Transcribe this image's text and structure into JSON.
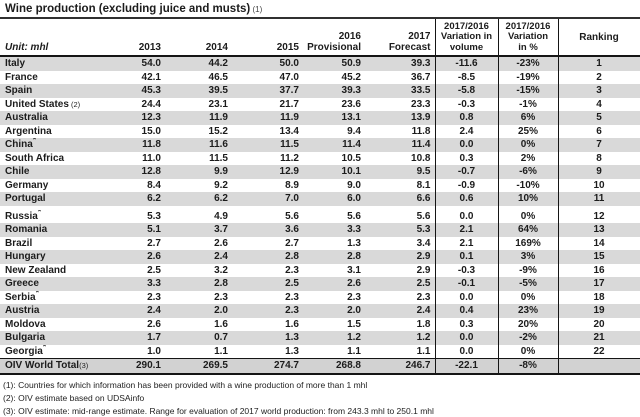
{
  "title": {
    "text": "Wine production (excluding juice and musts)",
    "note": "(1)"
  },
  "colors": {
    "stripe": "#d9d9d9",
    "total_bg": "#d2d2d2",
    "rule": "#151515",
    "text": "#1c1c1c"
  },
  "table": {
    "unit_label": "Unit: mhl",
    "col_headers": {
      "y2013": "2013",
      "y2014": "2014",
      "y2015": "2015",
      "y2016_l1": "2016",
      "y2016_l2": "Provisional",
      "y2017_l1": "2017",
      "y2017_l2": "Forecast",
      "varvol_l1": "2017/2016",
      "varvol_l2": "Variation in",
      "varvol_l3": "volume",
      "varpct_l1": "2017/2016",
      "varpct_l2": "Variation",
      "varpct_l3": "in %",
      "ranking": "Ranking"
    },
    "rows": [
      {
        "name": "Italy",
        "v13": "54.0",
        "v14": "44.2",
        "v15": "50.0",
        "v16": "50.9",
        "v17": "39.3",
        "dvol": "-11.6",
        "dpct": "-23%",
        "rank": "1"
      },
      {
        "name": "France",
        "v13": "42.1",
        "v14": "46.5",
        "v15": "47.0",
        "v16": "45.2",
        "v17": "36.7",
        "dvol": "-8.5",
        "dpct": "-19%",
        "rank": "2"
      },
      {
        "name": "Spain",
        "v13": "45.3",
        "v14": "39.5",
        "v15": "37.7",
        "v16": "39.3",
        "v17": "33.5",
        "dvol": "-5.8",
        "dpct": "-15%",
        "rank": "3"
      },
      {
        "name": "United States",
        "note": " (2)",
        "v13": "24.4",
        "v14": "23.1",
        "v15": "21.7",
        "v16": "23.6",
        "v17": "23.3",
        "dvol": "-0.3",
        "dpct": "-1%",
        "rank": "4"
      },
      {
        "name": "Australia",
        "v13": "12.3",
        "v14": "11.9",
        "v15": "11.9",
        "v16": "13.1",
        "v17": "13.9",
        "dvol": "0.8",
        "dpct": "6%",
        "rank": "5"
      },
      {
        "name": "Argentina",
        "v13": "15.0",
        "v14": "15.2",
        "v15": "13.4",
        "v16": "9.4",
        "v17": "11.8",
        "dvol": "2.4",
        "dpct": "25%",
        "rank": "6"
      },
      {
        "name": "China",
        "sup": "*",
        "v13": "11.8",
        "v14": "11.6",
        "v15": "11.5",
        "v16": "11.4",
        "v17": "11.4",
        "dvol": "0.0",
        "dpct": "0%",
        "rank": "7"
      },
      {
        "name": "South Africa",
        "v13": "11.0",
        "v14": "11.5",
        "v15": "11.2",
        "v16": "10.5",
        "v17": "10.8",
        "dvol": "0.3",
        "dpct": "2%",
        "rank": "8"
      },
      {
        "name": "Chile",
        "v13": "12.8",
        "v14": "9.9",
        "v15": "12.9",
        "v16": "10.1",
        "v17": "9.5",
        "dvol": "-0.7",
        "dpct": "-6%",
        "rank": "9"
      },
      {
        "name": "Germany",
        "v13": "8.4",
        "v14": "9.2",
        "v15": "8.9",
        "v16": "9.0",
        "v17": "8.1",
        "dvol": "-0.9",
        "dpct": "-10%",
        "rank": "10"
      },
      {
        "name": "Portugal",
        "v13": "6.2",
        "v14": "6.2",
        "v15": "7.0",
        "v16": "6.0",
        "v17": "6.6",
        "dvol": "0.6",
        "dpct": "10%",
        "rank": "11"
      },
      {
        "name": "Russia",
        "sup": "*",
        "gap_before": true,
        "v13": "5.3",
        "v14": "4.9",
        "v15": "5.6",
        "v16": "5.6",
        "v17": "5.6",
        "dvol": "0.0",
        "dpct": "0%",
        "rank": "12"
      },
      {
        "name": "Romania",
        "v13": "5.1",
        "v14": "3.7",
        "v15": "3.6",
        "v16": "3.3",
        "v17": "5.3",
        "dvol": "2.1",
        "dpct": "64%",
        "rank": "13"
      },
      {
        "name": "Brazil",
        "v13": "2.7",
        "v14": "2.6",
        "v15": "2.7",
        "v16": "1.3",
        "v17": "3.4",
        "dvol": "2.1",
        "dpct": "169%",
        "rank": "14"
      },
      {
        "name": "Hungary",
        "v13": "2.6",
        "v14": "2.4",
        "v15": "2.8",
        "v16": "2.8",
        "v17": "2.9",
        "dvol": "0.1",
        "dpct": "3%",
        "rank": "15"
      },
      {
        "name": "New Zealand",
        "v13": "2.5",
        "v14": "3.2",
        "v15": "2.3",
        "v16": "3.1",
        "v17": "2.9",
        "dvol": "-0.3",
        "dpct": "-9%",
        "rank": "16"
      },
      {
        "name": "Greece",
        "v13": "3.3",
        "v14": "2.8",
        "v15": "2.5",
        "v16": "2.6",
        "v17": "2.5",
        "dvol": "-0.1",
        "dpct": "-5%",
        "rank": "17"
      },
      {
        "name": "Serbia",
        "sup": "*",
        "v13": "2.3",
        "v14": "2.3",
        "v15": "2.3",
        "v16": "2.3",
        "v17": "2.3",
        "dvol": "0.0",
        "dpct": "0%",
        "rank": "18"
      },
      {
        "name": "Austria",
        "v13": "2.4",
        "v14": "2.0",
        "v15": "2.3",
        "v16": "2.0",
        "v17": "2.4",
        "dvol": "0.4",
        "dpct": "23%",
        "rank": "19"
      },
      {
        "name": "Moldova",
        "v13": "2.6",
        "v14": "1.6",
        "v15": "1.6",
        "v16": "1.5",
        "v17": "1.8",
        "dvol": "0.3",
        "dpct": "20%",
        "rank": "20"
      },
      {
        "name": "Bulgaria",
        "v13": "1.7",
        "v14": "0.7",
        "v15": "1.3",
        "v16": "1.2",
        "v17": "1.2",
        "dvol": "0.0",
        "dpct": "-2%",
        "rank": "21"
      },
      {
        "name": "Georgia",
        "sup": "*",
        "v13": "1.0",
        "v14": "1.1",
        "v15": "1.3",
        "v16": "1.1",
        "v17": "1.1",
        "dvol": "0.0",
        "dpct": "0%",
        "rank": "22"
      }
    ],
    "total_row": {
      "name": "OIV World Total",
      "note": "(3)",
      "v13": "290.1",
      "v14": "269.5",
      "v15": "274.7",
      "v16": "268.8",
      "v17": "246.7",
      "dvol": "-22.1",
      "dpct": "-8%",
      "rank": ""
    }
  },
  "footnotes": [
    "(1): Countries for which information has been provided with a wine production of more than 1 mhl",
    "(2): OIV estimate based on UDSAinfo",
    "(3): OIV estimate: mid-range estimate. Range for evaluation of 2017 world production: from 243.3 mhl to 250.1 mhl"
  ]
}
